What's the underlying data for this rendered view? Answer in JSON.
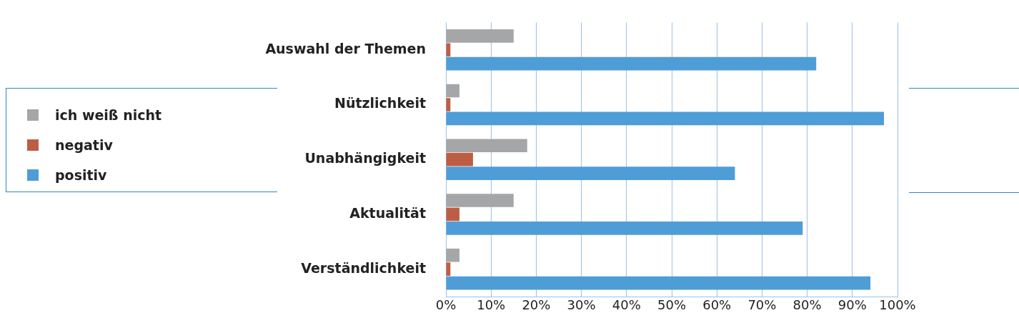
{
  "chart_data": {
    "type": "bar",
    "orientation": "horizontal",
    "categories": [
      "Auswahl der Themen",
      "Nützlichkeit",
      "Unabhängigkeit",
      "Aktualität",
      "Verständlichkeit"
    ],
    "series": [
      {
        "name": "ich weiß nicht",
        "color": "#a5a6a8",
        "values": [
          15,
          3,
          18,
          15,
          3
        ]
      },
      {
        "name": "negativ",
        "color": "#bd5e44",
        "values": [
          1,
          1,
          6,
          3,
          1
        ]
      },
      {
        "name": "positiv",
        "color": "#4f9dd6",
        "values": [
          82,
          97,
          64,
          79,
          94
        ]
      }
    ],
    "xlim": [
      0,
      100
    ],
    "xticks": [
      {
        "value": 0,
        "label": "0%"
      },
      {
        "value": 10,
        "label": "10%"
      },
      {
        "value": 20,
        "label": "20%"
      },
      {
        "value": 30,
        "label": "30%"
      },
      {
        "value": 40,
        "label": "40%"
      },
      {
        "value": 50,
        "label": "50%"
      },
      {
        "value": 60,
        "label": "60%"
      },
      {
        "value": 70,
        "label": "70%"
      },
      {
        "value": 80,
        "label": "80%"
      },
      {
        "value": 90,
        "label": "90%"
      },
      {
        "value": 100,
        "label": "100%"
      }
    ],
    "grid": "x",
    "legend": "left"
  }
}
